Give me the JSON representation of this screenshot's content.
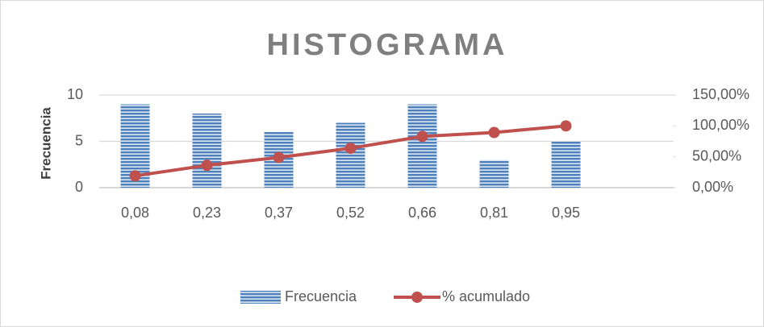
{
  "chart_data": {
    "type": "bar",
    "title": "HISTOGRAMA",
    "y_label": "Frecuencia",
    "categories": [
      "0,08",
      "0,23",
      "0,37",
      "0,52",
      "0,66",
      "0,81",
      "0,95",
      null
    ],
    "series": [
      {
        "name": "Frecuencia",
        "type": "bar",
        "color": "#4f81bd",
        "values": [
          9,
          8,
          6,
          7,
          9,
          3,
          5,
          null
        ]
      },
      {
        "name": "% acumulado",
        "type": "line",
        "axis": "y2",
        "color": "#c0504d",
        "values": [
          19.15,
          36.17,
          48.94,
          63.83,
          82.98,
          89.36,
          100,
          null
        ]
      }
    ],
    "ylim": [
      0,
      10
    ],
    "yticks": [
      0,
      5,
      10
    ],
    "y2lim": [
      0,
      150
    ],
    "y2ticks": [
      {
        "value": 0,
        "label": "0,00%"
      },
      {
        "value": 50,
        "label": "50,00%"
      },
      {
        "value": 100,
        "label": "100,00%"
      },
      {
        "value": 150,
        "label": "150,00%"
      }
    ],
    "grid": true,
    "legend": "bottom"
  }
}
